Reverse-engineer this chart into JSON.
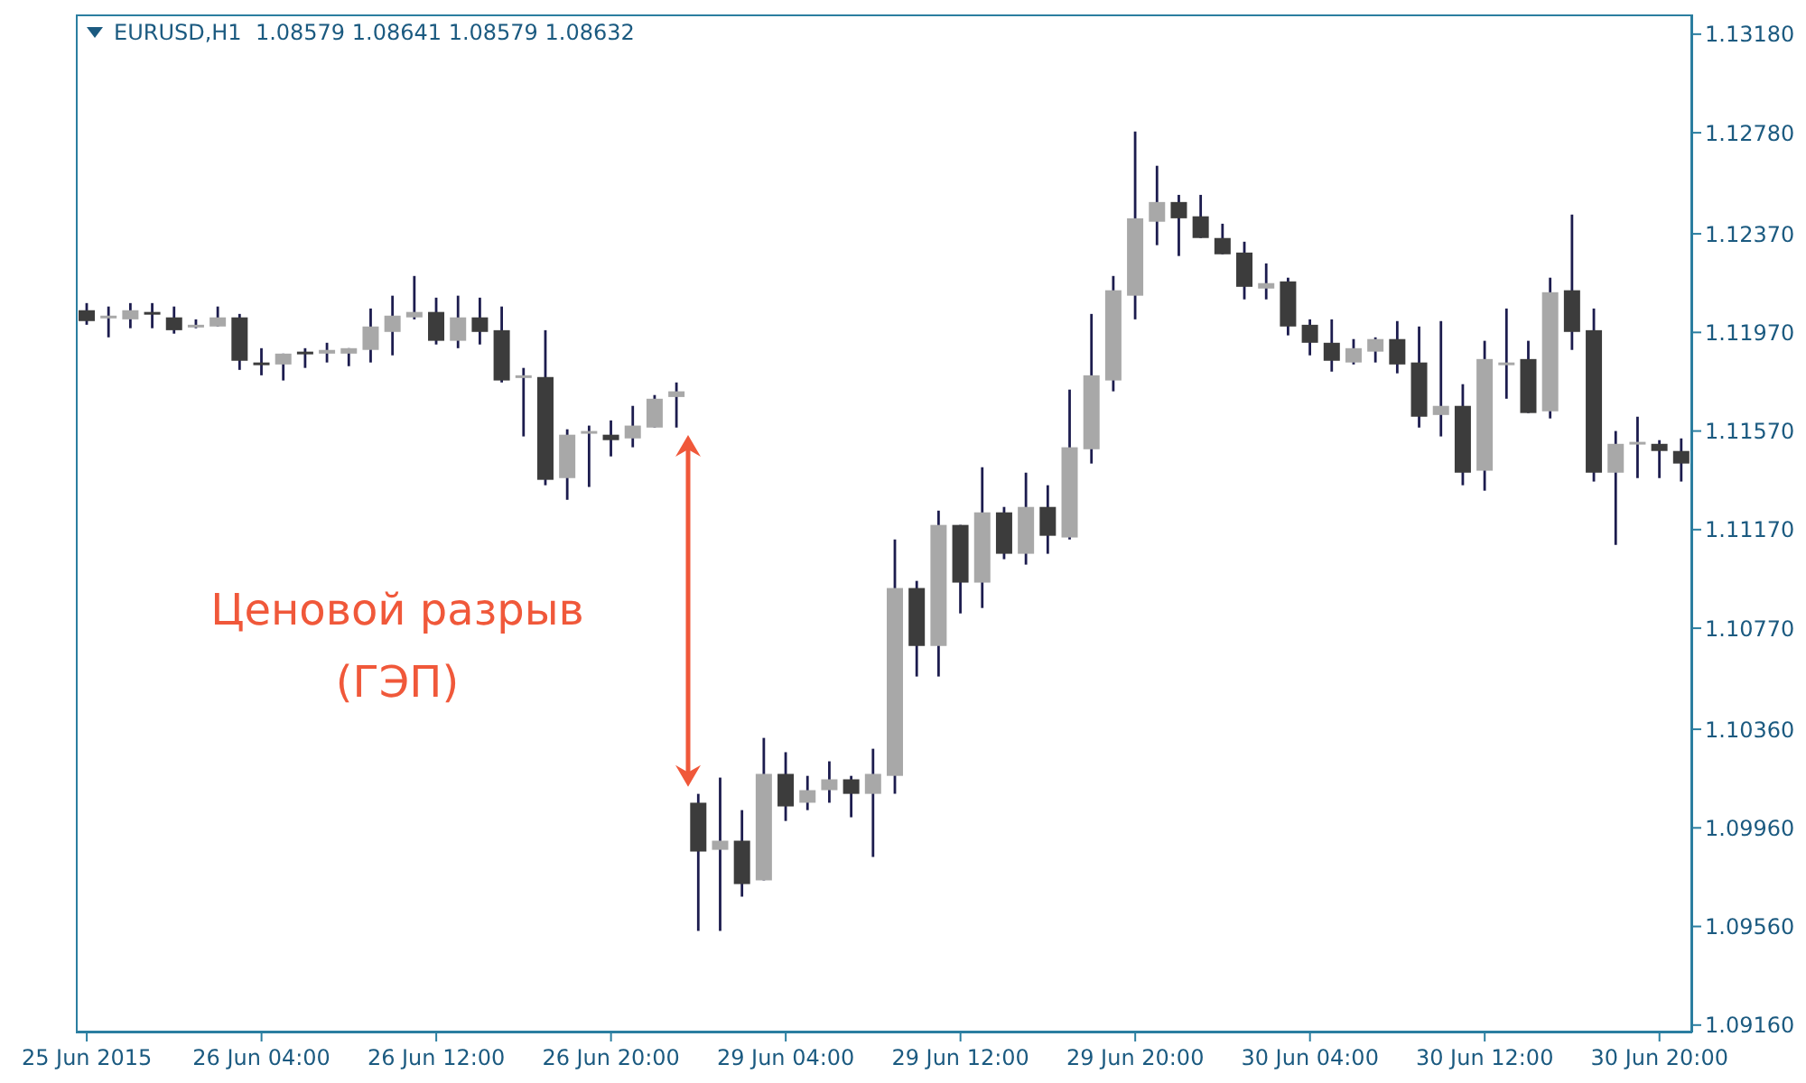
{
  "chart_data": {
    "title": "EURUSD,H1  1.08579 1.08641 1.08579 1.08632",
    "annotations": [
      "Ценовой разрыв (ГЭП)"
    ],
    "categories": [
      "25 Jun 2015",
      null,
      null,
      null,
      null,
      null,
      null,
      null,
      "26 Jun 04:00",
      null,
      null,
      null,
      null,
      null,
      null,
      null,
      "26 Jun 12:00",
      null,
      null,
      null,
      null,
      null,
      null,
      null,
      "26 Jun 20:00",
      null,
      null,
      null,
      null,
      null,
      null,
      null,
      "29 Jun 04:00",
      null,
      null,
      null,
      null,
      null,
      null,
      null,
      "29 Jun 12:00",
      null,
      null,
      null,
      null,
      null,
      null,
      null,
      "29 Jun 20:00",
      null,
      null,
      null,
      null,
      null,
      null,
      null,
      "30 Jun 04:00",
      null,
      null,
      null,
      null,
      null,
      null,
      null,
      "30 Jun 12:00",
      null,
      null,
      null,
      null,
      null,
      null,
      null,
      "30 Jun 20:00",
      null
    ],
    "ohlc": [
      [
        1.1206,
        1.12089,
        1.12001,
        1.12016
      ],
      [
        1.12038,
        1.12075,
        1.1195,
        1.12031
      ],
      [
        1.12023,
        1.12089,
        1.11987,
        1.1206
      ],
      [
        1.12053,
        1.12089,
        1.11987,
        1.12045
      ],
      [
        1.12031,
        1.12075,
        1.11965,
        1.11979
      ],
      [
        1.11994,
        1.12023,
        1.11987,
        1.12001
      ],
      [
        1.11994,
        1.12075,
        1.11994,
        1.12031
      ],
      [
        1.12031,
        1.12045,
        1.11818,
        1.11855
      ],
      [
        1.11848,
        1.11906,
        1.11796,
        1.1184
      ],
      [
        1.1184,
        1.11884,
        1.11775,
        1.11884
      ],
      [
        1.11892,
        1.11906,
        1.11826,
        1.11884
      ],
      [
        1.11884,
        1.11928,
        1.11848,
        1.11899
      ],
      [
        1.11884,
        1.11906,
        1.11833,
        1.11906
      ],
      [
        1.11899,
        1.12067,
        1.11848,
        1.11994
      ],
      [
        1.11972,
        1.12119,
        1.11877,
        1.12038
      ],
      [
        1.12031,
        1.12199,
        1.12023,
        1.12053
      ],
      [
        1.12053,
        1.12111,
        1.11921,
        1.11936
      ],
      [
        1.11936,
        1.12119,
        1.11906,
        1.12031
      ],
      [
        1.12031,
        1.12111,
        1.11921,
        1.11972
      ],
      [
        1.11979,
        1.12075,
        1.11767,
        1.11775
      ],
      [
        1.11796,
        1.11826,
        1.11548,
        1.11789
      ],
      [
        1.11789,
        1.11979,
        1.1135,
        1.11372
      ],
      [
        1.11379,
        1.11577,
        1.11291,
        1.11555
      ],
      [
        1.11562,
        1.11592,
        1.11343,
        1.1157
      ],
      [
        1.11555,
        1.11613,
        1.11467,
        1.11533
      ],
      [
        1.1154,
        1.11672,
        1.11504,
        1.11592
      ],
      [
        1.11584,
        1.11716,
        1.11584,
        1.11701
      ],
      [
        1.11708,
        1.11767,
        1.11584,
        1.11731
      ],
      [
        1.10062,
        1.10098,
        1.09542,
        1.09864
      ],
      [
        1.09871,
        1.10164,
        1.09542,
        1.09908
      ],
      [
        1.09908,
        1.10032,
        1.09681,
        1.09732
      ],
      [
        1.09747,
        1.10325,
        1.09747,
        1.10179
      ],
      [
        1.10179,
        1.10267,
        1.09988,
        1.10047
      ],
      [
        1.10062,
        1.10171,
        1.10032,
        1.10113
      ],
      [
        1.10113,
        1.1023,
        1.10062,
        1.10157
      ],
      [
        1.10157,
        1.10171,
        1.10003,
        1.10098
      ],
      [
        1.10098,
        1.10281,
        1.09842,
        1.10179
      ],
      [
        1.10171,
        1.1113,
        1.10098,
        1.10933
      ],
      [
        1.10933,
        1.10962,
        1.10574,
        1.10698
      ],
      [
        1.10698,
        1.11247,
        1.10574,
        1.11189
      ],
      [
        1.11189,
        1.11189,
        1.1083,
        1.10955
      ],
      [
        1.10955,
        1.11423,
        1.10852,
        1.1124
      ],
      [
        1.1124,
        1.11262,
        1.1105,
        1.11072
      ],
      [
        1.11072,
        1.11401,
        1.11028,
        1.11262
      ],
      [
        1.11262,
        1.1135,
        1.11072,
        1.11145
      ],
      [
        1.11138,
        1.11738,
        1.1113,
        1.11504
      ],
      [
        1.11496,
        1.12045,
        1.11438,
        1.11796
      ],
      [
        1.11775,
        1.12199,
        1.11731,
        1.12141
      ],
      [
        1.12119,
        1.12785,
        1.12023,
        1.12433
      ],
      [
        1.12419,
        1.12646,
        1.12324,
        1.12499
      ],
      [
        1.12499,
        1.12528,
        1.1228,
        1.12433
      ],
      [
        1.12441,
        1.12528,
        1.12353,
        1.12353
      ],
      [
        1.12353,
        1.12411,
        1.12287,
        1.12287
      ],
      [
        1.12294,
        1.12338,
        1.12104,
        1.12155
      ],
      [
        1.12148,
        1.1225,
        1.12104,
        1.1217
      ],
      [
        1.12177,
        1.12192,
        1.11958,
        1.11994
      ],
      [
        1.12001,
        1.12023,
        1.11877,
        1.11928
      ],
      [
        1.11928,
        1.12023,
        1.11811,
        1.11855
      ],
      [
        1.11848,
        1.11943,
        1.1184,
        1.11906
      ],
      [
        1.11892,
        1.1195,
        1.11848,
        1.11943
      ],
      [
        1.11943,
        1.12016,
        1.11804,
        1.1184
      ],
      [
        1.11848,
        1.11994,
        1.11584,
        1.11628
      ],
      [
        1.11635,
        1.12016,
        1.11548,
        1.11672
      ],
      [
        1.11672,
        1.1176,
        1.1135,
        1.11401
      ],
      [
        1.11409,
        1.11936,
        1.11328,
        1.11862
      ],
      [
        1.1184,
        1.12067,
        1.11701,
        1.11848
      ],
      [
        1.11862,
        1.11936,
        1.11643,
        1.11643
      ],
      [
        1.1165,
        1.12192,
        1.11621,
        1.12133
      ],
      [
        1.12141,
        1.12448,
        1.11899,
        1.11972
      ],
      [
        1.11979,
        1.12067,
        1.11365,
        1.11401
      ],
      [
        1.11401,
        1.1157,
        1.11108,
        1.11518
      ],
      [
        1.11518,
        1.11628,
        1.11379,
        1.11526
      ],
      [
        1.11518,
        1.11533,
        1.11379,
        1.11489
      ],
      [
        1.11489,
        1.1154,
        1.11365,
        1.11438
      ]
    ],
    "colors": [
      "#3c3c3c",
      "#a8a8a8",
      "#a8a8a8",
      "#3c3c3c",
      "#3c3c3c",
      "#a8a8a8",
      "#a8a8a8",
      "#3c3c3c",
      "#3c3c3c",
      "#a8a8a8",
      "#3c3c3c",
      "#a8a8a8",
      "#a8a8a8",
      "#a8a8a8",
      "#a8a8a8",
      "#a8a8a8",
      "#3c3c3c",
      "#a8a8a8",
      "#3c3c3c",
      "#3c3c3c",
      "#a8a8a8",
      "#3c3c3c",
      "#a8a8a8",
      "#a8a8a8",
      "#3c3c3c",
      "#a8a8a8",
      "#a8a8a8",
      "#a8a8a8",
      "#3c3c3c",
      "#a8a8a8",
      "#3c3c3c",
      "#a8a8a8",
      "#3c3c3c",
      "#a8a8a8",
      "#a8a8a8",
      "#3c3c3c",
      "#a8a8a8",
      "#a8a8a8",
      "#3c3c3c",
      "#a8a8a8",
      "#3c3c3c",
      "#a8a8a8",
      "#3c3c3c",
      "#a8a8a8",
      "#3c3c3c",
      "#a8a8a8",
      "#a8a8a8",
      "#a8a8a8",
      "#a8a8a8",
      "#a8a8a8",
      "#3c3c3c",
      "#3c3c3c",
      "#3c3c3c",
      "#3c3c3c",
      "#a8a8a8",
      "#3c3c3c",
      "#3c3c3c",
      "#3c3c3c",
      "#a8a8a8",
      "#a8a8a8",
      "#3c3c3c",
      "#3c3c3c",
      "#a8a8a8",
      "#3c3c3c",
      "#a8a8a8",
      "#a8a8a8",
      "#3c3c3c",
      "#a8a8a8",
      "#3c3c3c",
      "#3c3c3c",
      "#a8a8a8",
      "#a8a8a8",
      "#3c3c3c",
      "#3c3c3c"
    ],
    "ylim": [
      1.0913,
      1.1326
    ],
    "yticks": [
      {
        "value": 1.0916,
        "label": "1.09160"
      },
      {
        "value": 1.0956,
        "label": "1.09560"
      },
      {
        "value": 1.0996,
        "label": "1.09960"
      },
      {
        "value": 1.1036,
        "label": "1.10360"
      },
      {
        "value": 1.1077,
        "label": "1.10770"
      },
      {
        "value": 1.1117,
        "label": "1.11170"
      },
      {
        "value": 1.1157,
        "label": "1.11570"
      },
      {
        "value": 1.1197,
        "label": "1.11970"
      },
      {
        "value": 1.1237,
        "label": "1.12370"
      },
      {
        "value": 1.1278,
        "label": "1.12780"
      },
      {
        "value": 1.1318,
        "label": "1.13180"
      }
    ],
    "type": "candlestick"
  }
}
